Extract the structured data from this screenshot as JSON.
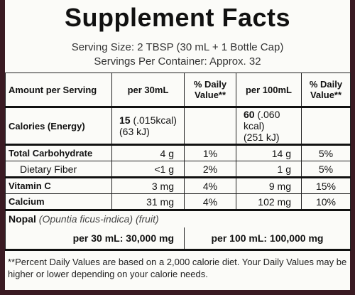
{
  "title": "Supplement Facts",
  "serving_size": "Serving Size: 2 TBSP (30 mL + 1 Bottle Cap)",
  "servings_per_container": "Servings Per Container: Approx. 32",
  "table": {
    "header": [
      "Amount per Serving",
      "per 30mL",
      "% Daily Value**",
      "per 100mL",
      "% Daily Value**"
    ],
    "calories": {
      "name": "Calories (Energy)",
      "per_30": [
        "15",
        "(.015kcal)",
        "(63 kJ)"
      ],
      "per_100": [
        "60",
        "(.060 kcal)",
        "(251 kJ)"
      ]
    },
    "rows": [
      [
        "Total Carbohydrate",
        "4 g",
        "1%",
        "14 g",
        "5%"
      ],
      [
        "Dietary Fiber",
        "<1 g",
        "2%",
        "1 g",
        "5%"
      ],
      [
        "Vitamin C",
        "3 mg",
        "4%",
        "9 mg",
        "15%"
      ],
      [
        "Calcium",
        "31 mg",
        "4%",
        "102 mg",
        "10%"
      ]
    ],
    "nopal": {
      "name": "Nopal",
      "species": "(Opuntia ficus-indica)",
      "part": "(fruit)",
      "per_30": "per 30 mL: 30,000 mg",
      "per_100": "per 100 mL: 100,000 mg"
    }
  },
  "footnote": "**Percent Daily Values are based on a 2,000 calorie diet. Your Daily Values may be higher or lower depending on your calorie needs."
}
